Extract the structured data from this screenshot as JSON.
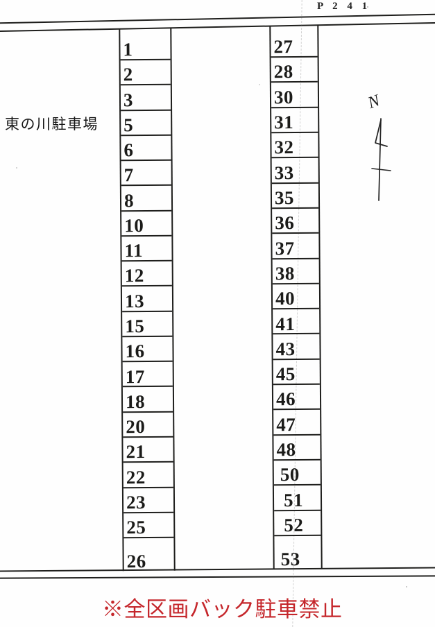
{
  "header": {
    "page_code": "P 2 4 1"
  },
  "site": {
    "name": "東の川駐車場"
  },
  "compass": {
    "north_label": "N"
  },
  "notice": {
    "text": "※全区画バック駐車禁止"
  },
  "lots": {
    "left_column": [
      "1",
      "2",
      "3",
      "5",
      "6",
      "7",
      "8",
      "10",
      "11",
      "12",
      "13",
      "15",
      "16",
      "17",
      "18",
      "20",
      "21",
      "22",
      "23",
      "25",
      "26"
    ],
    "right_column": [
      "27",
      "28",
      "30",
      "31",
      "32",
      "33",
      "35",
      "36",
      "37",
      "38",
      "40",
      "41",
      "43",
      "45",
      "46",
      "47",
      "48",
      "50",
      "51",
      "52",
      "53"
    ]
  },
  "colors": {
    "ink": "#1e1e1c",
    "notice_red": "#c5262b",
    "paper": "#fefefe"
  }
}
